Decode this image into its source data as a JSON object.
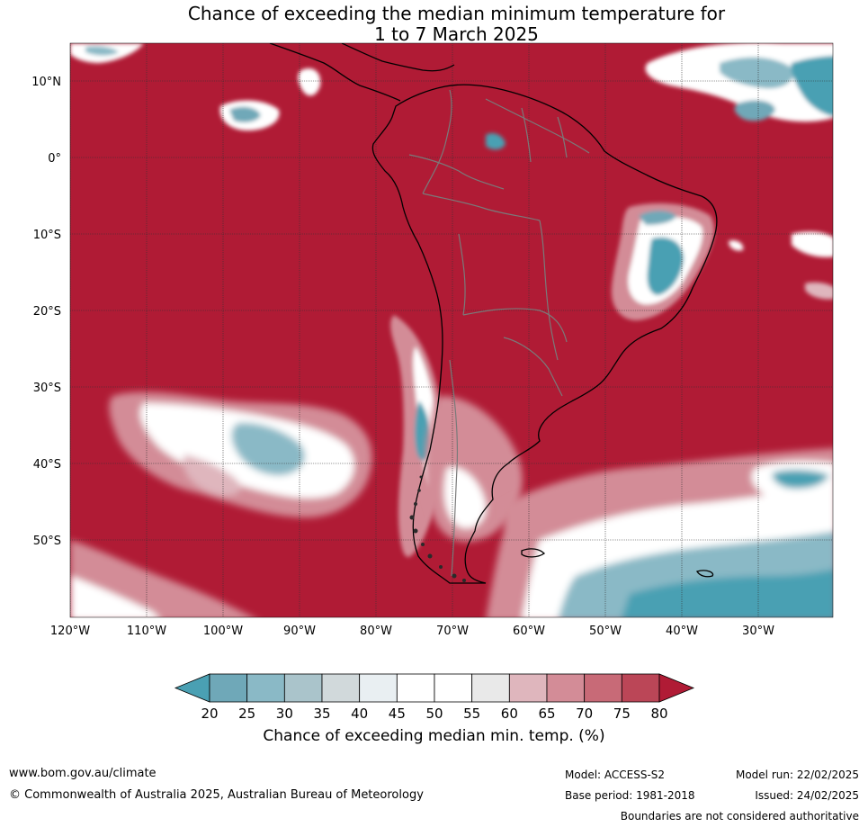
{
  "title": {
    "line1": "Chance of exceeding the median minimum temperature for",
    "line2": "1 to 7 March 2025"
  },
  "axes": {
    "lat_labels": [
      "10°N",
      "0°",
      "10°S",
      "20°S",
      "30°S",
      "40°S",
      "50°S"
    ],
    "lon_labels": [
      "120°W",
      "110°W",
      "100°W",
      "90°W",
      "80°W",
      "70°W",
      "60°W",
      "50°W",
      "40°W",
      "30°W"
    ]
  },
  "colorbar": {
    "ticks": [
      "20",
      "25",
      "30",
      "35",
      "40",
      "45",
      "50",
      "55",
      "60",
      "65",
      "70",
      "75",
      "80"
    ],
    "colors": [
      "#4aa0b3",
      "#6fa8b8",
      "#8ab9c6",
      "#aac4cb",
      "#d1d9db",
      "#e9eff2",
      "#ffffff",
      "#ffffff",
      "#e9e9e9",
      "#dfb6bd",
      "#d38c97",
      "#c86a77",
      "#bb4657",
      "#b01b35"
    ],
    "label": "Chance of exceeding median min. temp. (%)"
  },
  "colors": {
    "dominant": "#b01b35",
    "low": "#4aa0b3",
    "coast": "#000000",
    "border": "#7a7a7a"
  },
  "footer": {
    "website": "www.bom.gov.au/climate",
    "copyright": "© Commonwealth of Australia 2025, Australian Bureau of Meteorology",
    "model": "Model: ACCESS-S2",
    "base_period": "Base period: 1981-2018",
    "model_run": "Model run: 22/02/2025",
    "issued": "Issued: 24/02/2025",
    "disclaimer": "Boundaries are not considered authoritative"
  }
}
